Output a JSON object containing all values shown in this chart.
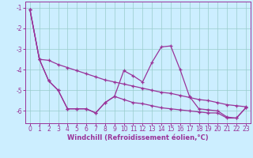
{
  "xlabel": "Windchill (Refroidissement éolien,°C)",
  "background_color": "#cceeff",
  "grid_color": "#99cccc",
  "line_color": "#993399",
  "x": [
    0,
    1,
    2,
    3,
    4,
    5,
    6,
    7,
    8,
    9,
    10,
    11,
    12,
    13,
    14,
    15,
    16,
    17,
    18,
    19,
    20,
    21,
    22,
    23
  ],
  "line1": [
    -1.1,
    -3.5,
    -3.55,
    -3.75,
    -3.9,
    -4.05,
    -4.2,
    -4.35,
    -4.5,
    -4.6,
    -4.7,
    -4.8,
    -4.9,
    -5.0,
    -5.1,
    -5.15,
    -5.25,
    -5.35,
    -5.45,
    -5.5,
    -5.6,
    -5.7,
    -5.75,
    -5.8
  ],
  "line2": [
    -1.1,
    -3.5,
    -4.55,
    -5.0,
    -5.9,
    -5.9,
    -5.9,
    -6.1,
    -5.6,
    -5.3,
    -4.05,
    -4.3,
    -4.6,
    -3.65,
    -2.9,
    -2.85,
    -4.0,
    -5.3,
    -5.9,
    -5.95,
    -6.0,
    -6.3,
    -6.35,
    -5.85
  ],
  "line3": [
    -1.1,
    -3.5,
    -4.55,
    -5.0,
    -5.9,
    -5.9,
    -5.9,
    -6.1,
    -5.6,
    -5.3,
    -5.45,
    -5.6,
    -5.65,
    -5.75,
    -5.85,
    -5.9,
    -5.95,
    -6.0,
    -6.05,
    -6.1,
    -6.1,
    -6.35,
    -6.35,
    -5.85
  ],
  "ylim": [
    -6.6,
    -0.7
  ],
  "yticks": [
    -6,
    -5,
    -4,
    -3,
    -2,
    -1
  ],
  "xticks": [
    0,
    1,
    2,
    3,
    4,
    5,
    6,
    7,
    8,
    9,
    10,
    11,
    12,
    13,
    14,
    15,
    16,
    17,
    18,
    19,
    20,
    21,
    22,
    23
  ],
  "tick_fontsize": 5.5,
  "xlabel_fontsize": 6.0,
  "ylabel_fontsize": 6.0
}
